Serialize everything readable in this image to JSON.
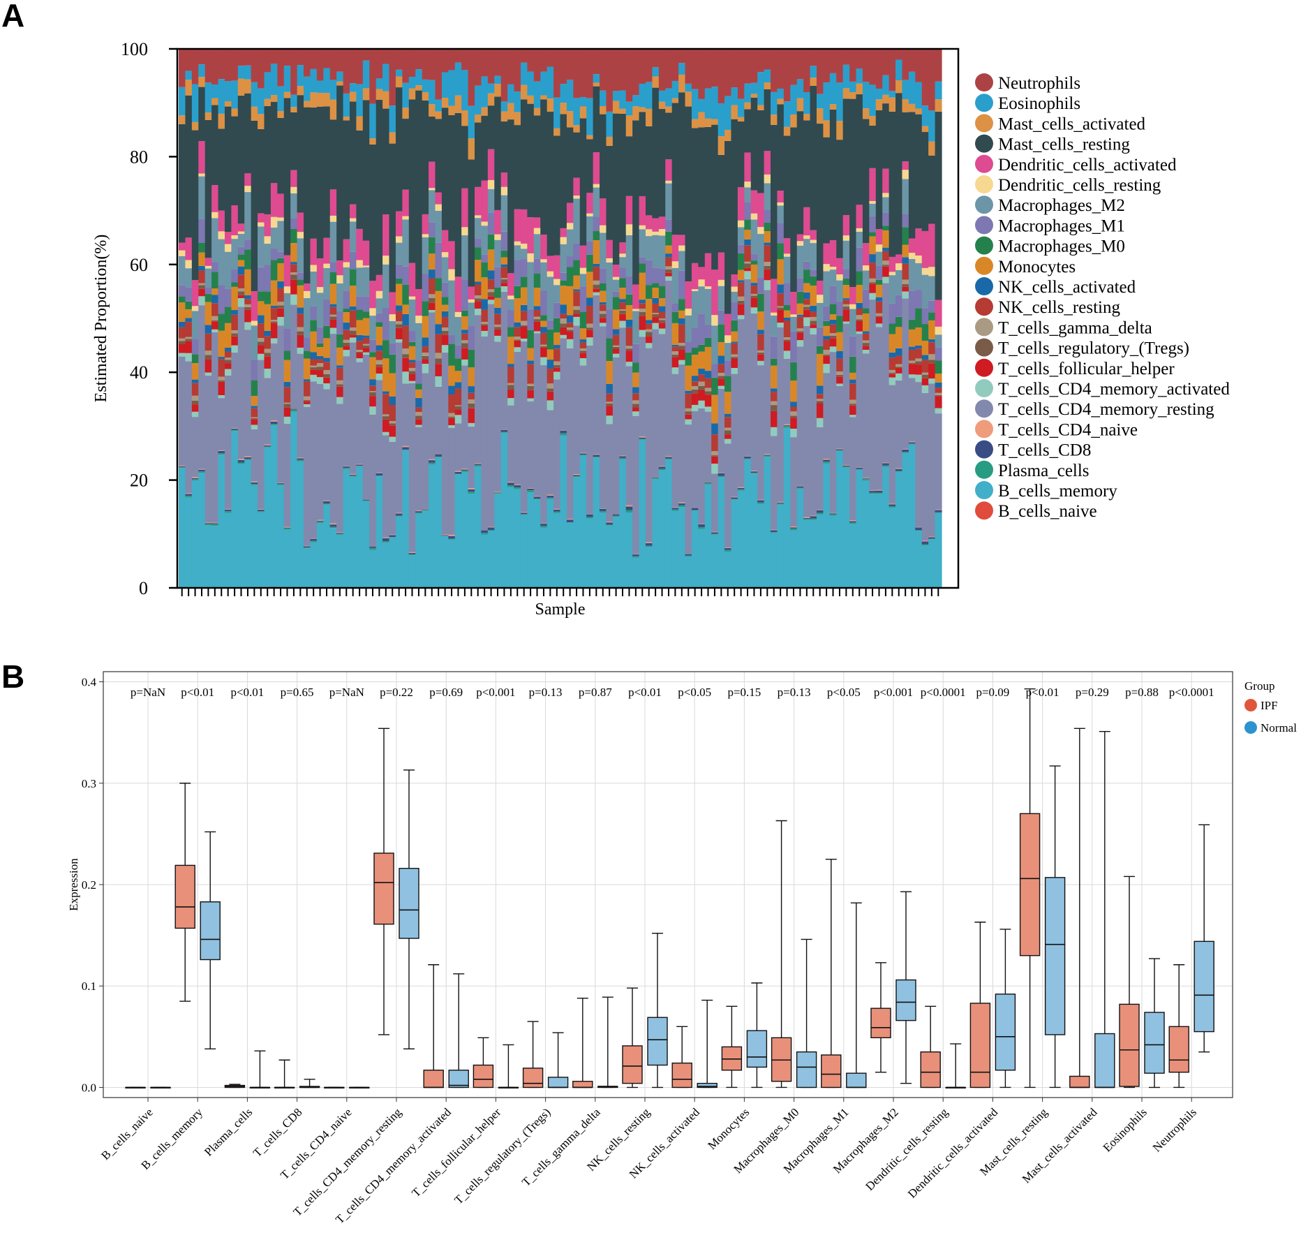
{
  "panel_a_letter": "A",
  "panel_b_letter": "B",
  "chart_data": [
    {
      "type": "bar",
      "stacked": true,
      "panel": "A",
      "title": "",
      "xlabel": "Sample",
      "ylabel": "Estimated Proportion(%)",
      "ylim": [
        0,
        100
      ],
      "yticks": [
        0,
        20,
        40,
        60,
        80,
        100
      ],
      "n_samples": 116,
      "legend_position": "right",
      "cell_types": [
        {
          "name": "Neutrophils",
          "color": "#ad4245"
        },
        {
          "name": "Eosinophils",
          "color": "#2a9fcc"
        },
        {
          "name": "Mast_cells_activated",
          "color": "#dd9144"
        },
        {
          "name": "Mast_cells_resting",
          "color": "#304a50"
        },
        {
          "name": "Dendritic_cells_activated",
          "color": "#de4b90"
        },
        {
          "name": "Dendritic_cells_resting",
          "color": "#f7d891"
        },
        {
          "name": "Macrophages_M2",
          "color": "#6c95a8"
        },
        {
          "name": "Macrophages_M1",
          "color": "#7d77b2"
        },
        {
          "name": "Macrophages_M0",
          "color": "#25814c"
        },
        {
          "name": "Monocytes",
          "color": "#d98726"
        },
        {
          "name": "NK_cells_activated",
          "color": "#1969a8"
        },
        {
          "name": "NK_cells_resting",
          "color": "#b63b33"
        },
        {
          "name": "T_cells_gamma_delta",
          "color": "#ab9a83"
        },
        {
          "name": "T_cells_regulatory_(Tregs)",
          "color": "#7a5b48"
        },
        {
          "name": "T_cells_follicular_helper",
          "color": "#cf1b22"
        },
        {
          "name": "T_cells_CD4_memory_activated",
          "color": "#91cbbd"
        },
        {
          "name": "T_cells_CD4_memory_resting",
          "color": "#8389ad"
        },
        {
          "name": "T_cells_CD4_naive",
          "color": "#ee9c7b"
        },
        {
          "name": "T_cells_CD8",
          "color": "#394c84"
        },
        {
          "name": "Plasma_cells",
          "color": "#279c82"
        },
        {
          "name": "B_cells_memory",
          "color": "#40afc7"
        },
        {
          "name": "B_cells_naive",
          "color": "#e04c3c"
        }
      ],
      "mean_proportions": {
        "B_cells_memory": 17,
        "T_cells_CD4_memory_resting": 23,
        "Mast_cells_resting": 21,
        "Neutrophils": 6,
        "Eosinophils": 4,
        "Macrophages_M2": 5,
        "Dendritic_cells_activated": 4,
        "Macrophages_M1": 3,
        "Macrophages_M0": 2,
        "Monocytes": 3,
        "Mast_cells_activated": 2,
        "NK_cells_resting": 2,
        "T_cells_follicular_helper": 1.5,
        "T_cells_CD4_memory_activated": 1,
        "NK_cells_activated": 1,
        "Dendritic_cells_resting": 1,
        "T_cells_gamma_delta": 0.5,
        "T_cells_regulatory_(Tregs)": 0.5,
        "T_cells_CD8": 0.3,
        "Plasma_cells": 0.2,
        "T_cells_CD4_naive": 0.1,
        "B_cells_naive": 0.1
      }
    },
    {
      "type": "box",
      "panel": "B",
      "title": "",
      "xlabel": "",
      "ylabel": "Expression",
      "ylim": [
        -0.01,
        0.41
      ],
      "yticks": [
        0.0,
        0.1,
        0.2,
        0.3,
        0.4
      ],
      "ytick_labels": [
        "0.0",
        "0.1",
        "0.2",
        "0.3",
        "0.4"
      ],
      "legend": {
        "title": "Group",
        "position": "top-right",
        "entries": [
          {
            "name": "IPF",
            "color": "#e8907a"
          },
          {
            "name": "Normal",
            "color": "#90c1e0"
          }
        ]
      },
      "categories": [
        "B_cells_naive",
        "B_cells_memory",
        "Plasma_cells",
        "T_cells_CD8",
        "T_cells_CD4_naive",
        "T_cells_CD4_memory_resting",
        "T_cells_CD4_memory_activated",
        "T_cells_follicular_helper",
        "T_cells_regulatory_(Tregs)",
        "T_cells_gamma_delta",
        "NK_cells_resting",
        "NK_cells_activated",
        "Monocytes",
        "Macrophages_M0",
        "Macrophages_M1",
        "Macrophages_M2",
        "Dendritic_cells_resting",
        "Dendritic_cells_activated",
        "Mast_cells_resting",
        "Mast_cells_activated",
        "Eosinophils",
        "Neutrophils"
      ],
      "pvalues": [
        "p=NaN",
        "p<0.01",
        "p<0.01",
        "p=0.65",
        "p=NaN",
        "p=0.22",
        "p=0.69",
        "p<0.001",
        "p=0.13",
        "p=0.87",
        "p<0.01",
        "p<0.05",
        "p=0.15",
        "p=0.13",
        "p<0.05",
        "p<0.001",
        "p<0.0001",
        "p=0.09",
        "p<0.01",
        "p=0.29",
        "p=0.88",
        "p<0.0001"
      ],
      "series": [
        {
          "name": "IPF",
          "boxes": [
            [
              0,
              0,
              0,
              0,
              0
            ],
            [
              0.085,
              0.157,
              0.178,
              0.219,
              0.3
            ],
            [
              0,
              0,
              0.001,
              0.002,
              0.003
            ],
            [
              0,
              0,
              0,
              0,
              0.027
            ],
            [
              0,
              0,
              0,
              0,
              0
            ],
            [
              0.052,
              0.161,
              0.202,
              0.231,
              0.354
            ],
            [
              0,
              0,
              0,
              0.017,
              0.121
            ],
            [
              0,
              0,
              0.008,
              0.022,
              0.049
            ],
            [
              0,
              0,
              0.004,
              0.019,
              0.065
            ],
            [
              0,
              0,
              0,
              0.006,
              0.088
            ],
            [
              0,
              0.004,
              0.021,
              0.041,
              0.098
            ],
            [
              0,
              0,
              0.008,
              0.024,
              0.06
            ],
            [
              0,
              0.017,
              0.028,
              0.04,
              0.08
            ],
            [
              0,
              0.006,
              0.027,
              0.049,
              0.263
            ],
            [
              0,
              0,
              0.013,
              0.032,
              0.225
            ],
            [
              0.015,
              0.049,
              0.059,
              0.078,
              0.123
            ],
            [
              0,
              0,
              0.015,
              0.035,
              0.08
            ],
            [
              0,
              0,
              0.015,
              0.083,
              0.163
            ],
            [
              0,
              0.13,
              0.206,
              0.27,
              0.393
            ],
            [
              0,
              0,
              0,
              0.011,
              0.354
            ],
            [
              0,
              0.001,
              0.037,
              0.082,
              0.208
            ],
            [
              0,
              0.015,
              0.027,
              0.06,
              0.121
            ]
          ]
        },
        {
          "name": "Normal",
          "boxes": [
            [
              0,
              0,
              0,
              0,
              0
            ],
            [
              0.038,
              0.126,
              0.146,
              0.183,
              0.252
            ],
            [
              0,
              0,
              0,
              0,
              0.036
            ],
            [
              0,
              0,
              0,
              0.001,
              0.008
            ],
            [
              0,
              0,
              0,
              0,
              0
            ],
            [
              0.038,
              0.147,
              0.175,
              0.216,
              0.313
            ],
            [
              0,
              0,
              0.002,
              0.017,
              0.112
            ],
            [
              0,
              0,
              0,
              0,
              0.042
            ],
            [
              0,
              0,
              0,
              0.01,
              0.054
            ],
            [
              0,
              0,
              0.001,
              0.001,
              0.089
            ],
            [
              0,
              0.022,
              0.047,
              0.069,
              0.152
            ],
            [
              0,
              0,
              0.001,
              0.004,
              0.086
            ],
            [
              0,
              0.02,
              0.03,
              0.056,
              0.103
            ],
            [
              0,
              0,
              0.02,
              0.035,
              0.146
            ],
            [
              0,
              0,
              0,
              0.014,
              0.182
            ],
            [
              0.004,
              0.066,
              0.084,
              0.106,
              0.193
            ],
            [
              0,
              0,
              0,
              0,
              0.043
            ],
            [
              0,
              0.017,
              0.05,
              0.092,
              0.156
            ],
            [
              0,
              0.052,
              0.141,
              0.207,
              0.317
            ],
            [
              0,
              0,
              0,
              0.053,
              0.351
            ],
            [
              0,
              0.014,
              0.042,
              0.074,
              0.127
            ],
            [
              0.035,
              0.055,
              0.091,
              0.144,
              0.259
            ]
          ]
        }
      ]
    }
  ]
}
